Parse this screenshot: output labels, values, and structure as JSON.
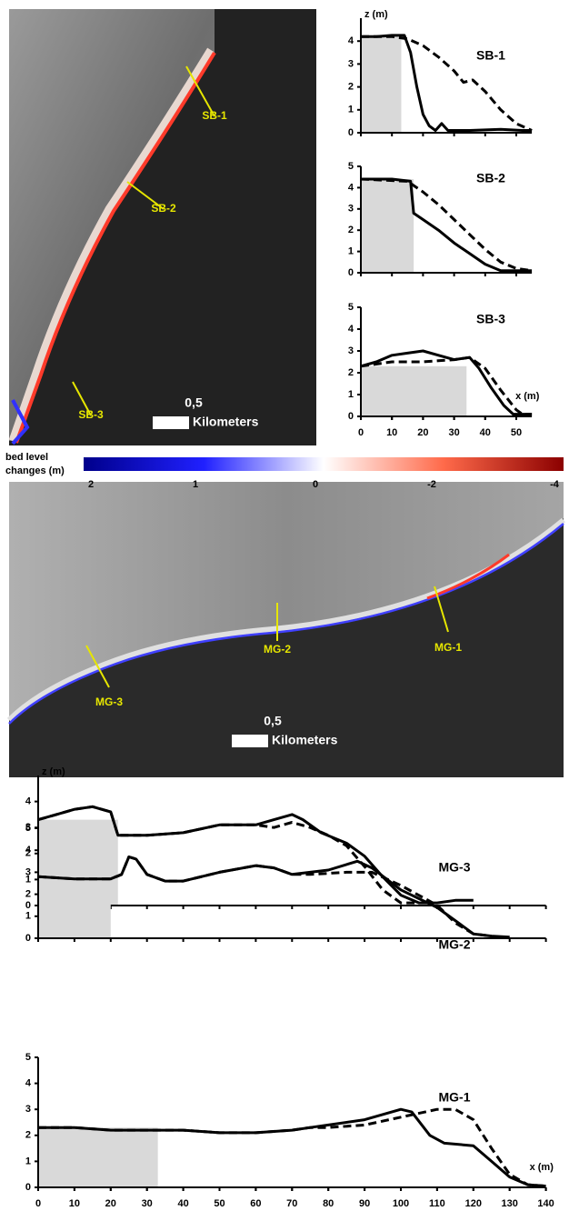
{
  "chart_data": [
    {
      "type": "line",
      "title": "SB-1",
      "ylabel": "z (m)",
      "xlim": [
        0,
        55
      ],
      "ylim": [
        0,
        5
      ],
      "yticks": [
        0,
        1,
        2,
        3,
        4
      ],
      "shaded_x": [
        0,
        13
      ],
      "series": [
        {
          "style": "solid",
          "color": "#000000",
          "x": [
            0,
            5,
            10,
            14,
            16,
            18,
            20,
            22,
            24,
            26,
            28,
            35,
            45,
            52,
            55
          ],
          "values": [
            4.2,
            4.2,
            4.25,
            4.25,
            3.5,
            2,
            0.8,
            0.3,
            0.1,
            0.4,
            0.1,
            0.1,
            0.15,
            0.1,
            0.1
          ]
        },
        {
          "style": "dashed",
          "color": "#000000",
          "x": [
            0,
            10,
            15,
            20,
            25,
            30,
            33,
            36,
            40,
            45,
            50,
            55
          ],
          "values": [
            4.2,
            4.2,
            4.1,
            3.8,
            3.3,
            2.7,
            2.2,
            2.3,
            1.8,
            1.0,
            0.4,
            0.1
          ]
        }
      ]
    },
    {
      "type": "line",
      "title": "SB-2",
      "xlim": [
        0,
        55
      ],
      "ylim": [
        0,
        5
      ],
      "yticks": [
        0,
        1,
        2,
        3,
        4,
        5
      ],
      "shaded_x": [
        0,
        17
      ],
      "series": [
        {
          "style": "solid",
          "color": "#000000",
          "x": [
            0,
            10,
            16,
            17,
            20,
            25,
            30,
            35,
            40,
            45,
            55
          ],
          "values": [
            4.4,
            4.4,
            4.3,
            2.8,
            2.5,
            2.0,
            1.4,
            0.9,
            0.4,
            0.1,
            0.1
          ]
        },
        {
          "style": "dashed",
          "color": "#000000",
          "x": [
            0,
            15,
            20,
            25,
            30,
            35,
            40,
            45,
            50,
            55
          ],
          "values": [
            4.4,
            4.3,
            3.8,
            3.2,
            2.5,
            1.8,
            1.1,
            0.5,
            0.2,
            0.1
          ]
        }
      ]
    },
    {
      "type": "line",
      "title": "SB-3",
      "xlabel": "x (m)",
      "xlim": [
        0,
        55
      ],
      "ylim": [
        0,
        5
      ],
      "xticks": [
        0,
        10,
        20,
        30,
        40,
        50
      ],
      "yticks": [
        0,
        1,
        2,
        3,
        4,
        5
      ],
      "shaded_x": [
        0,
        34
      ],
      "series": [
        {
          "style": "solid",
          "color": "#000000",
          "x": [
            0,
            5,
            10,
            15,
            20,
            25,
            30,
            35,
            38,
            42,
            46,
            49,
            55
          ],
          "values": [
            2.3,
            2.5,
            2.8,
            2.9,
            3.0,
            2.8,
            2.6,
            2.7,
            2.2,
            1.3,
            0.5,
            0.1,
            0.1
          ]
        },
        {
          "style": "dashed",
          "color": "#000000",
          "x": [
            0,
            10,
            20,
            30,
            35,
            40,
            45,
            50,
            52,
            55
          ],
          "values": [
            2.3,
            2.5,
            2.5,
            2.6,
            2.7,
            2.2,
            1.2,
            0.3,
            0.1,
            0.1
          ]
        }
      ]
    },
    {
      "type": "line",
      "title": "MG-3",
      "ylabel": "z (m)",
      "xlim": [
        0,
        140
      ],
      "ylim": [
        0,
        5
      ],
      "yticks": [
        0,
        1,
        2,
        3,
        4
      ],
      "shaded_x": [
        0,
        22
      ],
      "series": [
        {
          "style": "solid",
          "color": "#000000",
          "x": [
            0,
            5,
            10,
            15,
            20,
            22,
            30,
            40,
            50,
            60,
            65,
            70,
            73,
            78,
            85,
            90,
            95,
            100,
            105,
            110,
            115,
            120
          ],
          "values": [
            3.3,
            3.5,
            3.7,
            3.8,
            3.6,
            2.7,
            2.7,
            2.8,
            3.1,
            3.1,
            3.3,
            3.5,
            3.3,
            2.8,
            2.4,
            1.9,
            1.1,
            0.4,
            0.1,
            0.1,
            0.2,
            0.2
          ]
        },
        {
          "style": "dashed",
          "color": "#000000",
          "x": [
            0,
            5,
            10,
            15,
            20,
            22,
            30,
            40,
            50,
            60,
            65,
            70,
            75,
            80,
            85,
            90,
            95,
            100,
            105
          ],
          "values": [
            3.3,
            3.5,
            3.7,
            3.8,
            3.6,
            2.7,
            2.7,
            2.8,
            3.1,
            3.1,
            3.0,
            3.2,
            3.0,
            2.7,
            2.3,
            1.5,
            0.6,
            0.1,
            0.1
          ]
        }
      ]
    },
    {
      "type": "line",
      "title": "MG-2",
      "xlim": [
        0,
        140
      ],
      "ylim": [
        0,
        5
      ],
      "yticks": [
        0,
        1,
        2,
        3,
        4,
        5
      ],
      "shaded_x": [
        0,
        20
      ],
      "series": [
        {
          "style": "solid",
          "color": "#000000",
          "x": [
            0,
            10,
            20,
            23,
            25,
            27,
            30,
            35,
            40,
            50,
            60,
            65,
            70,
            80,
            88,
            92,
            100,
            110,
            115,
            120,
            125,
            130
          ],
          "values": [
            2.8,
            2.7,
            2.7,
            2.9,
            3.7,
            3.6,
            2.9,
            2.6,
            2.6,
            3.0,
            3.3,
            3.2,
            2.9,
            3.1,
            3.5,
            3.2,
            2.2,
            1.4,
            0.8,
            0.2,
            0.1,
            0.05
          ]
        },
        {
          "style": "dashed",
          "color": "#000000",
          "x": [
            0,
            10,
            20,
            23,
            25,
            27,
            30,
            35,
            40,
            50,
            60,
            65,
            70,
            75,
            85,
            92,
            100,
            110,
            115,
            120,
            125
          ],
          "values": [
            2.8,
            2.7,
            2.7,
            2.9,
            3.7,
            3.6,
            2.9,
            2.6,
            2.6,
            3.0,
            3.3,
            3.2,
            2.9,
            2.9,
            3.0,
            3.0,
            2.4,
            1.5,
            0.7,
            0.2,
            0.1
          ]
        }
      ]
    },
    {
      "type": "line",
      "title": "MG-1",
      "xlabel": "x (m)",
      "xlim": [
        0,
        140
      ],
      "ylim": [
        0,
        5
      ],
      "xticks": [
        0,
        10,
        20,
        30,
        40,
        50,
        60,
        70,
        80,
        90,
        100,
        110,
        120,
        130,
        140
      ],
      "yticks": [
        0,
        1,
        2,
        3,
        4,
        5
      ],
      "shaded_x": [
        0,
        33
      ],
      "series": [
        {
          "style": "solid",
          "color": "#000000",
          "x": [
            0,
            10,
            20,
            30,
            40,
            50,
            60,
            70,
            75,
            80,
            90,
            100,
            103,
            108,
            112,
            120,
            125,
            130,
            135,
            140
          ],
          "values": [
            2.3,
            2.3,
            2.2,
            2.2,
            2.2,
            2.1,
            2.1,
            2.2,
            2.3,
            2.4,
            2.6,
            3.0,
            2.9,
            2.0,
            1.7,
            1.6,
            1.0,
            0.4,
            0.1,
            0.05
          ]
        },
        {
          "style": "dashed",
          "color": "#000000",
          "x": [
            0,
            10,
            20,
            30,
            40,
            50,
            60,
            70,
            75,
            80,
            90,
            100,
            110,
            115,
            120,
            125,
            130,
            135,
            140
          ],
          "values": [
            2.3,
            2.3,
            2.2,
            2.2,
            2.2,
            2.1,
            2.1,
            2.2,
            2.3,
            2.3,
            2.4,
            2.7,
            3.0,
            3.0,
            2.6,
            1.5,
            0.5,
            0.1,
            0.05
          ]
        }
      ]
    }
  ],
  "maps": [
    {
      "labels": [
        "SB-1",
        "SB-2",
        "SB-3"
      ],
      "scale_value": "0,5",
      "scale_unit": "Kilometers"
    },
    {
      "labels": [
        "MG-1",
        "MG-2",
        "MG-3"
      ],
      "scale_value": "0,5",
      "scale_unit": "Kilometers"
    }
  ],
  "colorbar": {
    "title": "bed level changes (m)",
    "ticks": [
      2,
      1,
      0,
      -2,
      -4
    ],
    "colors": [
      "#00008b",
      "#2020ff",
      "#ffffff",
      "#ff6a4a",
      "#8b0000"
    ]
  }
}
